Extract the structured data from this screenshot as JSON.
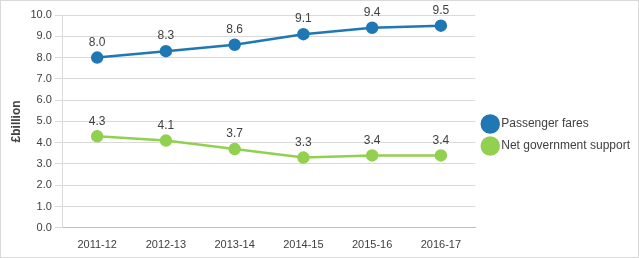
{
  "chart_data": {
    "type": "line",
    "y_label": "£billion",
    "categories": [
      "2011-12",
      "2012-13",
      "2013-14",
      "2014-15",
      "2015-16",
      "2016-17"
    ],
    "series": [
      {
        "name": "Passenger fares",
        "color": "#1f77b4",
        "marker": "circle",
        "values": [
          8,
          8.3,
          8.6,
          9.1,
          9.4,
          9.5
        ],
        "value_labels": [
          "8.0",
          "8.3",
          "8.6",
          "9.1",
          "9.4",
          "9.5"
        ]
      },
      {
        "name": "Net government support",
        "color": "#92d050",
        "marker": "circle",
        "values": [
          4.3,
          4.1,
          3.7,
          3.3,
          3.4,
          3.4
        ],
        "value_labels": [
          "4.3",
          "4.1",
          "3.7",
          "3.3",
          "3.4",
          "3.4"
        ]
      }
    ],
    "ylim": [
      0,
      10
    ],
    "yticks": [
      {
        "value": 0,
        "label": "0.0"
      },
      {
        "value": 1,
        "label": "1.0"
      },
      {
        "value": 2,
        "label": "2.0"
      },
      {
        "value": 3,
        "label": "3.0"
      },
      {
        "value": 4,
        "label": "4.0"
      },
      {
        "value": 5,
        "label": "5.0"
      },
      {
        "value": 6,
        "label": "6.0"
      },
      {
        "value": 7,
        "label": "7.0"
      },
      {
        "value": 8,
        "label": "8.0"
      },
      {
        "value": 9,
        "label": "9.0"
      },
      {
        "value": 10,
        "label": "10.0"
      }
    ],
    "grid": true,
    "legend": "right",
    "data_labels": true
  }
}
